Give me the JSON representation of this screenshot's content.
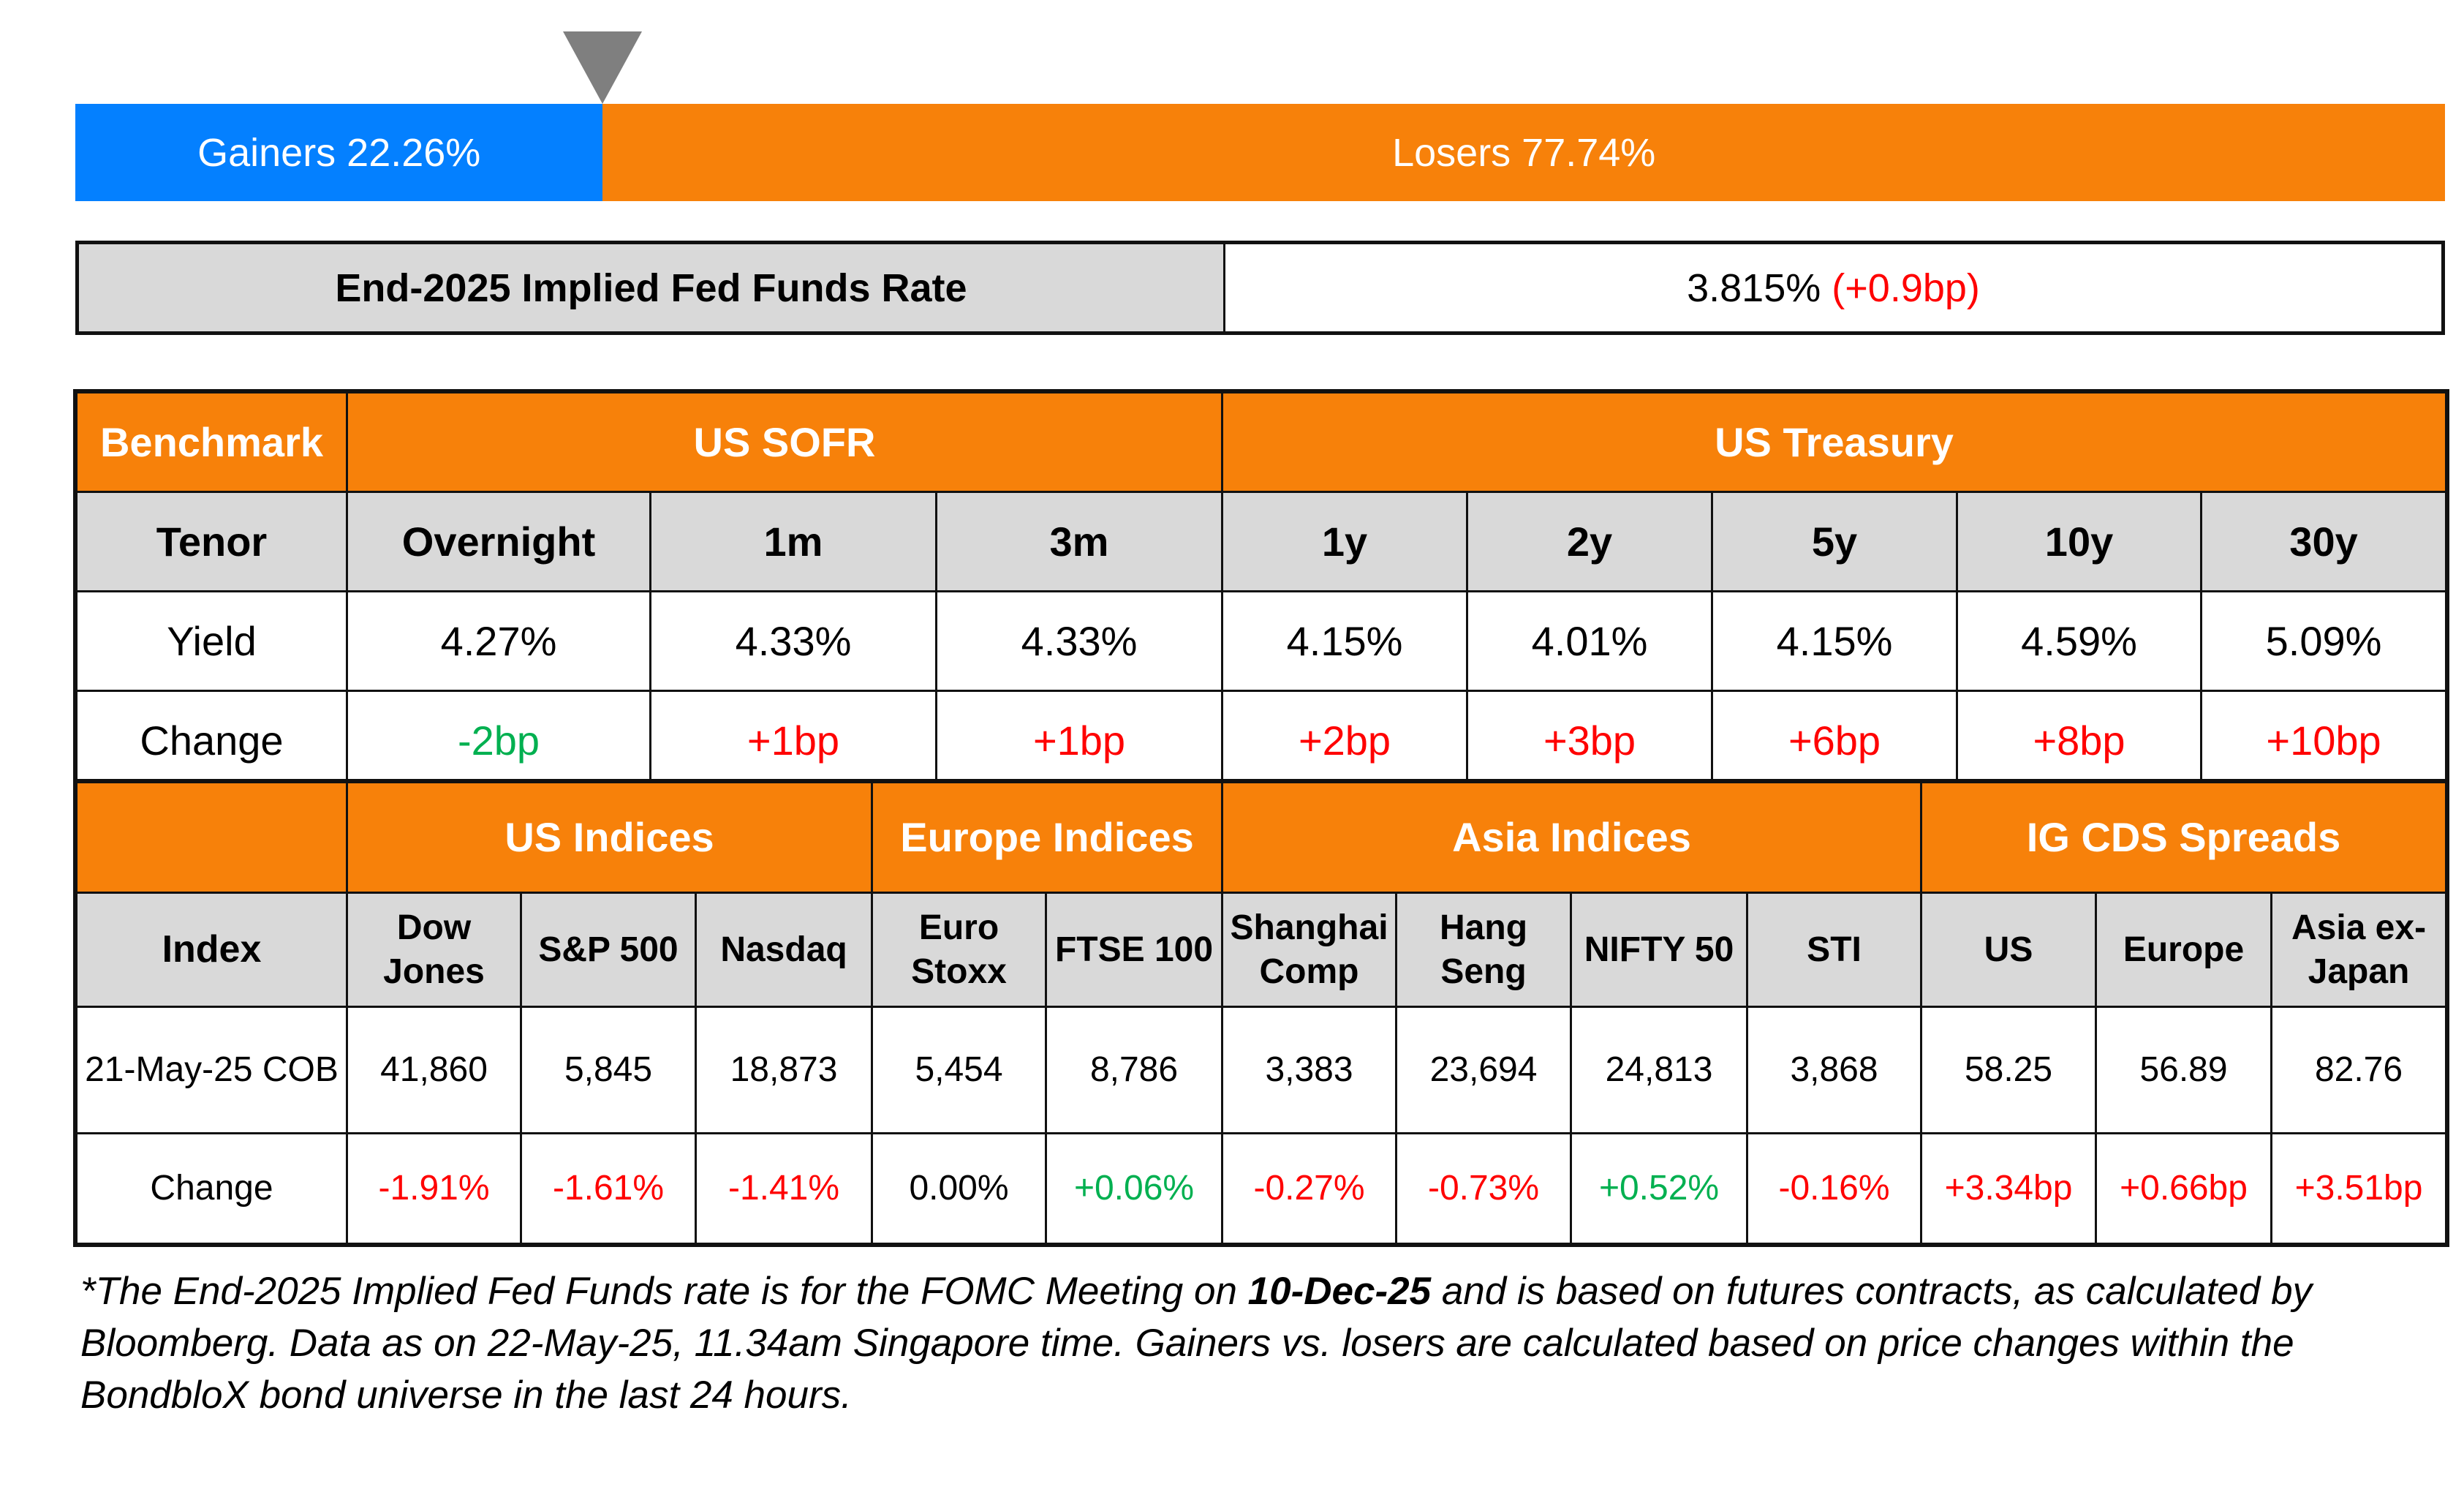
{
  "breadth": {
    "gainers_label": "Gainers 22.26%",
    "losers_label": "Losers 77.74%",
    "gainers_pct": 22.26,
    "losers_pct": 77.74,
    "colors": {
      "gainers": "#0480FF",
      "losers": "#F7810A",
      "marker": "#7F7F7F"
    }
  },
  "fed": {
    "label": "End-2025 Implied Fed Funds Rate",
    "value": "3.815%",
    "change": "(+0.9bp)",
    "change_color": "#FF0000"
  },
  "rates": {
    "benchmark_label": "Benchmark",
    "groups": [
      {
        "label": "US SOFR",
        "span": 3
      },
      {
        "label": "US Treasury",
        "span": 5
      }
    ],
    "tenor_label": "Tenor",
    "yield_label": "Yield",
    "change_label": "Change",
    "tenors": [
      {
        "tenor": "Overnight",
        "yield": "4.27%",
        "change": "-2bp",
        "dir": "green"
      },
      {
        "tenor": "1m",
        "yield": "4.33%",
        "change": "+1bp",
        "dir": "red"
      },
      {
        "tenor": "3m",
        "yield": "4.33%",
        "change": "+1bp",
        "dir": "red"
      },
      {
        "tenor": "1y",
        "yield": "4.15%",
        "change": "+2bp",
        "dir": "red"
      },
      {
        "tenor": "2y",
        "yield": "4.01%",
        "change": "+3bp",
        "dir": "red"
      },
      {
        "tenor": "5y",
        "yield": "4.15%",
        "change": "+6bp",
        "dir": "red"
      },
      {
        "tenor": "10y",
        "yield": "4.59%",
        "change": "+8bp",
        "dir": "red"
      },
      {
        "tenor": "30y",
        "yield": "5.09%",
        "change": "+10bp",
        "dir": "red"
      }
    ]
  },
  "indices": {
    "groups": [
      {
        "label": "US Indices",
        "span": 3
      },
      {
        "label": "Europe Indices",
        "span": 2
      },
      {
        "label": "Asia Indices",
        "span": 4
      },
      {
        "label": "IG CDS Spreads",
        "span": 3
      }
    ],
    "index_label": "Index",
    "date_label": "21-May-25 COB",
    "change_label": "Change",
    "items": [
      {
        "name_l1": "Dow",
        "name_l2": "Jones",
        "value": "41,860",
        "change": "-1.91%",
        "dir": "red"
      },
      {
        "name_l1": "S&P 500",
        "name_l2": "",
        "value": "5,845",
        "change": "-1.61%",
        "dir": "red"
      },
      {
        "name_l1": "Nasdaq",
        "name_l2": "",
        "value": "18,873",
        "change": "-1.41%",
        "dir": "red"
      },
      {
        "name_l1": "Euro",
        "name_l2": "Stoxx",
        "value": "5,454",
        "change": "0.00%",
        "dir": "black"
      },
      {
        "name_l1": "FTSE 100",
        "name_l2": "",
        "value": "8,786",
        "change": "+0.06%",
        "dir": "green"
      },
      {
        "name_l1": "Shanghai",
        "name_l2": "Comp",
        "value": "3,383",
        "change": "-0.27%",
        "dir": "red"
      },
      {
        "name_l1": "Hang",
        "name_l2": "Seng",
        "value": "23,694",
        "change": "-0.73%",
        "dir": "red"
      },
      {
        "name_l1": "NIFTY 50",
        "name_l2": "",
        "value": "24,813",
        "change": "+0.52%",
        "dir": "green"
      },
      {
        "name_l1": "STI",
        "name_l2": "",
        "value": "3,868",
        "change": "-0.16%",
        "dir": "red"
      },
      {
        "name_l1": "US",
        "name_l2": "",
        "value": "58.25",
        "change": "+3.34bp",
        "dir": "red"
      },
      {
        "name_l1": "Europe",
        "name_l2": "",
        "value": "56.89",
        "change": "+0.66bp",
        "dir": "red"
      },
      {
        "name_l1": "Asia ex-",
        "name_l2": "Japan",
        "value": "82.76",
        "change": "+3.51bp",
        "dir": "red"
      }
    ]
  },
  "footnote": {
    "part1": "*The End-2025 Implied Fed Funds rate is for the FOMC Meeting on ",
    "bold": "10-Dec-25",
    "part2": " and is based on futures contracts, as calculated by Bloomberg. Data as on 22-May-25, 11.34am Singapore time. Gainers vs. losers are calculated based on price changes within the BondbloX bond universe in the last 24 hours."
  },
  "colors": {
    "header_orange": "#F7810A",
    "subheader_grey": "#D9D9D9",
    "positive_red": "#FF0000",
    "negative_green": "#00B050"
  }
}
